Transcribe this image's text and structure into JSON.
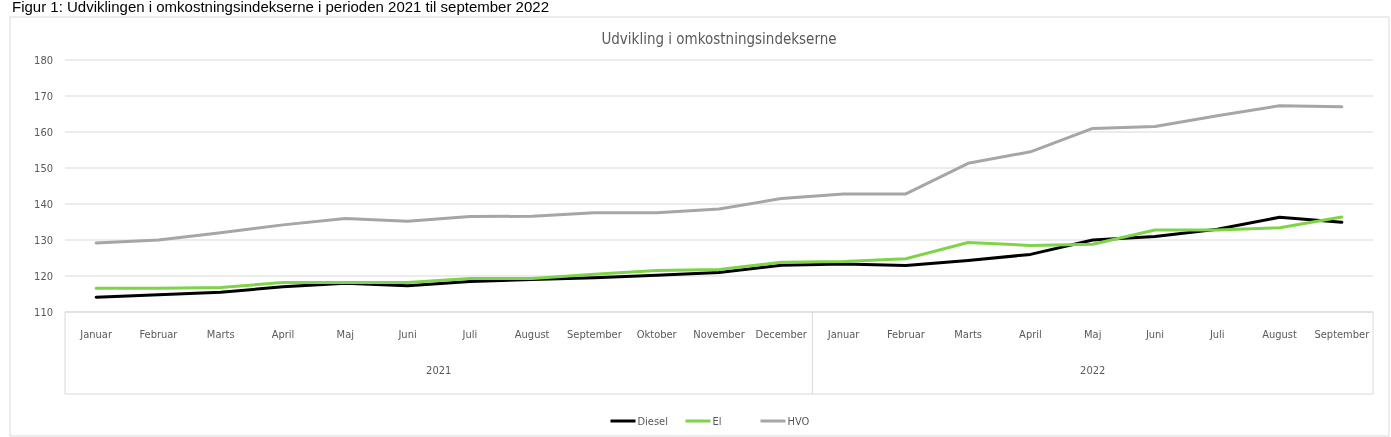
{
  "chart_data": {
    "type": "line",
    "title": "Udvikling i omkostningsindekserne",
    "subtitle": "Figur 1: Udviklingen i omkostningsindekserne i perioden 2021 til september 2022",
    "categories": [
      "Januar",
      "Februar",
      "Marts",
      "April",
      "Maj",
      "Juni",
      "Juli",
      "August",
      "September",
      "Oktober",
      "November",
      "December",
      "Januar",
      "Februar",
      "Marts",
      "April",
      "Maj",
      "Juni",
      "Juli",
      "August",
      "September"
    ],
    "annotations": [
      "2021",
      "2022"
    ],
    "series": [
      {
        "name": "Diesel",
        "color": "#000000",
        "values": [
          114.1,
          114.8,
          115.5,
          117,
          118,
          117.3,
          118.5,
          119,
          119.5,
          120.2,
          121,
          123,
          123.3,
          122.9,
          124.3,
          126,
          130,
          131,
          133,
          136.3,
          134.9
        ]
      },
      {
        "name": "El",
        "color": "#7ed348",
        "values": [
          116.6,
          116.6,
          116.8,
          118.2,
          118.2,
          118.2,
          119.3,
          119.3,
          120.5,
          121.5,
          121.8,
          123.8,
          124,
          124.8,
          129.3,
          128.5,
          128.8,
          132.8,
          132.8,
          133.4,
          136.4
        ]
      },
      {
        "name": "HVO",
        "color": "#a6a6a6",
        "values": [
          129.2,
          130,
          132,
          134.2,
          136,
          135.2,
          136.5,
          136.6,
          137.6,
          137.6,
          138.6,
          141.5,
          142.8,
          142.8,
          151.3,
          154.5,
          161,
          161.5,
          164.5,
          167.3,
          167
        ]
      }
    ],
    "ylim": [
      110,
      180
    ],
    "yticks": [
      110,
      120,
      130,
      140,
      150,
      160,
      170,
      180
    ],
    "grid": "y",
    "legend": "bottom",
    "marker": "none",
    "line_style": "solid"
  }
}
